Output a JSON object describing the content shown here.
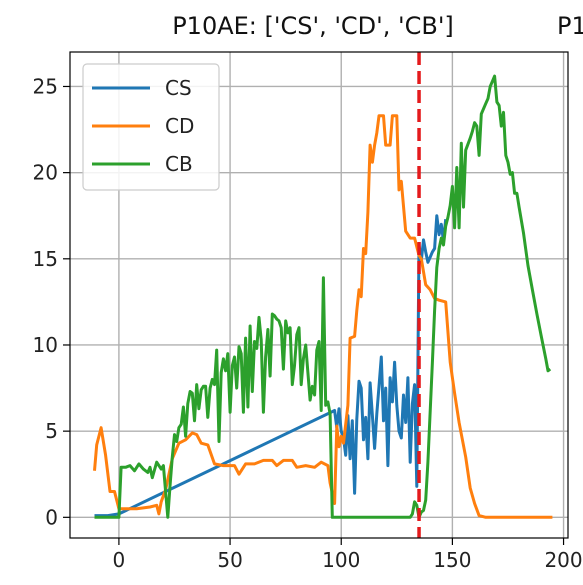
{
  "chart_data": {
    "type": "line",
    "title": "P10AE: ['CS', 'CD', 'CB']",
    "title_overflow": "P1",
    "xlabel": "",
    "ylabel": "",
    "xlim": [
      -22,
      202
    ],
    "ylim": [
      -1.2,
      27
    ],
    "x_ticks": [
      0,
      50,
      100,
      150,
      200
    ],
    "y_ticks": [
      0,
      5,
      10,
      15,
      20,
      25
    ],
    "grid": true,
    "legend_position": "top-left",
    "vline": {
      "x": 135,
      "color": "#e41a1c",
      "style": "dashed"
    },
    "series": [
      {
        "name": "CS",
        "color": "#1f77b4",
        "points": [
          [
            -11,
            0.1
          ],
          [
            -5,
            0.1
          ],
          [
            0,
            0.2
          ],
          [
            97,
            6.2
          ],
          [
            98,
            5.2
          ],
          [
            99,
            6.3
          ],
          [
            100,
            5.0
          ],
          [
            101,
            4.6
          ],
          [
            102,
            3.6
          ],
          [
            103,
            5.9
          ],
          [
            104,
            3.4
          ],
          [
            105,
            5.6
          ],
          [
            106,
            1.4
          ],
          [
            107,
            5.7
          ],
          [
            108,
            7.9
          ],
          [
            109,
            7.5
          ],
          [
            110,
            4.5
          ],
          [
            111,
            5.8
          ],
          [
            112,
            3.4
          ],
          [
            113,
            7.8
          ],
          [
            114,
            5.9
          ],
          [
            115,
            4.0
          ],
          [
            116,
            6.0
          ],
          [
            117,
            7.6
          ],
          [
            118,
            9.3
          ],
          [
            119,
            5.6
          ],
          [
            120,
            7.5
          ],
          [
            121,
            3.0
          ],
          [
            122,
            8.1
          ],
          [
            123,
            6.7
          ],
          [
            124,
            9.0
          ],
          [
            125,
            6.5
          ],
          [
            126,
            5.0
          ],
          [
            127,
            4.6
          ],
          [
            128,
            7.1
          ],
          [
            129,
            5.5
          ],
          [
            130,
            8.1
          ],
          [
            131,
            3.2
          ],
          [
            132,
            6.6
          ],
          [
            133,
            7.7
          ],
          [
            134,
            1.8
          ],
          [
            135,
            15.8
          ],
          [
            136,
            14.9
          ],
          [
            137,
            16.1
          ],
          [
            138,
            15.4
          ],
          [
            139,
            14.8
          ],
          [
            140,
            15.1
          ],
          [
            141,
            15.4
          ],
          [
            142,
            15.6
          ],
          [
            143,
            17.5
          ],
          [
            144,
            16.4
          ],
          [
            145,
            17.0
          ],
          [
            146,
            16.0
          ],
          [
            147,
            17.3
          ]
        ]
      },
      {
        "name": "CD",
        "color": "#ff7f0e",
        "points": [
          [
            -11,
            2.7
          ],
          [
            -10,
            4.2
          ],
          [
            -8,
            5.2
          ],
          [
            -6,
            3.6
          ],
          [
            -4,
            1.5
          ],
          [
            -2,
            1.5
          ],
          [
            0,
            0.5
          ],
          [
            8,
            0.5
          ],
          [
            14,
            0.6
          ],
          [
            17,
            0.7
          ],
          [
            18,
            0.2
          ],
          [
            19,
            0.9
          ],
          [
            21,
            1.6
          ],
          [
            24,
            3.4
          ],
          [
            27,
            4.3
          ],
          [
            30,
            4.5
          ],
          [
            33,
            4.9
          ],
          [
            35,
            4.8
          ],
          [
            37,
            4.3
          ],
          [
            40,
            4.2
          ],
          [
            43,
            3.1
          ],
          [
            47,
            3.0
          ],
          [
            52,
            3.0
          ],
          [
            54,
            2.5
          ],
          [
            57,
            3.1
          ],
          [
            61,
            3.1
          ],
          [
            65,
            3.3
          ],
          [
            69,
            3.3
          ],
          [
            71,
            3.0
          ],
          [
            74,
            3.3
          ],
          [
            78,
            3.3
          ],
          [
            80,
            2.9
          ],
          [
            84,
            3.0
          ],
          [
            88,
            2.9
          ],
          [
            91,
            3.2
          ],
          [
            94,
            3.0
          ],
          [
            95,
            2.0
          ],
          [
            97,
            0.8
          ],
          [
            98,
            5.3
          ],
          [
            99,
            4.1
          ],
          [
            100,
            4.7
          ],
          [
            101,
            4.3
          ],
          [
            103,
            6.5
          ],
          [
            104,
            10.4
          ],
          [
            106,
            10.5
          ],
          [
            107,
            12.0
          ],
          [
            108,
            13.2
          ],
          [
            109,
            12.8
          ],
          [
            110,
            15.6
          ],
          [
            111,
            15.3
          ],
          [
            112,
            17.7
          ],
          [
            113,
            21.6
          ],
          [
            114,
            20.6
          ],
          [
            115,
            21.6
          ],
          [
            116,
            22.3
          ],
          [
            117,
            23.3
          ],
          [
            119,
            23.3
          ],
          [
            120,
            21.6
          ],
          [
            122,
            21.6
          ],
          [
            123,
            23.3
          ],
          [
            125,
            23.3
          ],
          [
            126,
            19.0
          ],
          [
            127,
            19.5
          ],
          [
            129,
            16.6
          ],
          [
            131,
            16.2
          ],
          [
            133,
            16.2
          ],
          [
            135,
            15.2
          ],
          [
            136,
            15.0
          ],
          [
            138,
            13.5
          ],
          [
            140,
            13.2
          ],
          [
            142,
            12.7
          ],
          [
            144,
            12.6
          ],
          [
            147,
            12.5
          ],
          [
            149,
            9.0
          ],
          [
            151,
            7.2
          ],
          [
            153,
            5.5
          ],
          [
            156,
            3.5
          ],
          [
            158,
            1.7
          ],
          [
            160,
            0.8
          ],
          [
            162,
            0.1
          ],
          [
            165,
            0
          ],
          [
            195,
            0
          ]
        ]
      },
      {
        "name": "CB",
        "color": "#2ca02c",
        "points": [
          [
            -11,
            0
          ],
          [
            -8,
            0
          ],
          [
            -5,
            0
          ],
          [
            0,
            0
          ],
          [
            1,
            2.9
          ],
          [
            3,
            2.9
          ],
          [
            5,
            3.0
          ],
          [
            7,
            2.7
          ],
          [
            9,
            3.1
          ],
          [
            11,
            2.8
          ],
          [
            13,
            2.6
          ],
          [
            14,
            2.9
          ],
          [
            15,
            2.3
          ],
          [
            17,
            3.2
          ],
          [
            19,
            2.8
          ],
          [
            20,
            3.0
          ],
          [
            21,
            1.5
          ],
          [
            22,
            0
          ],
          [
            23,
            1.8
          ],
          [
            24,
            3.5
          ],
          [
            25,
            4.8
          ],
          [
            26,
            4.4
          ],
          [
            27,
            5.2
          ],
          [
            28,
            5.4
          ],
          [
            29,
            6.4
          ],
          [
            30,
            4.7
          ],
          [
            31,
            6.6
          ],
          [
            32,
            7.3
          ],
          [
            33,
            7.2
          ],
          [
            34,
            5.6
          ],
          [
            35,
            7.7
          ],
          [
            36,
            6.3
          ],
          [
            37,
            7.4
          ],
          [
            38,
            7.6
          ],
          [
            39,
            7.6
          ],
          [
            40,
            5.8
          ],
          [
            41,
            7.5
          ],
          [
            42,
            8.0
          ],
          [
            43,
            7.7
          ],
          [
            44,
            9.7
          ],
          [
            45,
            4.4
          ],
          [
            46,
            8.4
          ],
          [
            47,
            9.2
          ],
          [
            48,
            8.5
          ],
          [
            49,
            9.5
          ],
          [
            50,
            6.1
          ],
          [
            51,
            8.8
          ],
          [
            52,
            9.3
          ],
          [
            53,
            7.5
          ],
          [
            54,
            9.9
          ],
          [
            55,
            9.5
          ],
          [
            56,
            6.1
          ],
          [
            57,
            10.4
          ],
          [
            58,
            6.4
          ],
          [
            59,
            11.1
          ],
          [
            60,
            7.3
          ],
          [
            61,
            10.2
          ],
          [
            62,
            9.8
          ],
          [
            63,
            11.6
          ],
          [
            64,
            10.3
          ],
          [
            65,
            6.1
          ],
          [
            66,
            9.3
          ],
          [
            67,
            10.9
          ],
          [
            68,
            8.2
          ],
          [
            69,
            11.8
          ],
          [
            70,
            11.7
          ],
          [
            71,
            11.5
          ],
          [
            72,
            11.4
          ],
          [
            73,
            11.0
          ],
          [
            74,
            8.6
          ],
          [
            75,
            11.4
          ],
          [
            76,
            10.7
          ],
          [
            77,
            11.0
          ],
          [
            78,
            7.7
          ],
          [
            79,
            8.8
          ],
          [
            80,
            10.6
          ],
          [
            81,
            11.0
          ],
          [
            82,
            7.7
          ],
          [
            83,
            9.2
          ],
          [
            84,
            10.0
          ],
          [
            85,
            8.4
          ],
          [
            86,
            6.8
          ],
          [
            87,
            7.6
          ],
          [
            88,
            7.1
          ],
          [
            89,
            9.7
          ],
          [
            90,
            10.2
          ],
          [
            91,
            6.2
          ],
          [
            92,
            13.9
          ],
          [
            93,
            6.5
          ],
          [
            94,
            6.7
          ],
          [
            95,
            6.0
          ],
          [
            96,
            0
          ],
          [
            100,
            0
          ],
          [
            120,
            0
          ],
          [
            131,
            0
          ],
          [
            132,
            0.2
          ],
          [
            133,
            0.9
          ],
          [
            134,
            0.7
          ],
          [
            135,
            0
          ],
          [
            136,
            0.3
          ],
          [
            137,
            0.4
          ],
          [
            138,
            1.0
          ],
          [
            139,
            3.2
          ],
          [
            141,
            9.0
          ],
          [
            142,
            12.0
          ],
          [
            143,
            14.5
          ],
          [
            144,
            15.6
          ],
          [
            145,
            16.2
          ],
          [
            146,
            15.8
          ],
          [
            147,
            16.9
          ],
          [
            148,
            17.4
          ],
          [
            149,
            18.1
          ],
          [
            150,
            19.2
          ],
          [
            151,
            16.8
          ],
          [
            152,
            20.3
          ],
          [
            153,
            16.8
          ],
          [
            154,
            21.7
          ],
          [
            155,
            18.0
          ],
          [
            156,
            21.3
          ],
          [
            158,
            22.0
          ],
          [
            159,
            22.4
          ],
          [
            160,
            22.9
          ],
          [
            161,
            22.7
          ],
          [
            162,
            21.0
          ],
          [
            163,
            23.4
          ],
          [
            165,
            24.0
          ],
          [
            166,
            24.3
          ],
          [
            167,
            25.0
          ],
          [
            168,
            25.3
          ],
          [
            169,
            25.6
          ],
          [
            170,
            24.1
          ],
          [
            171,
            23.9
          ],
          [
            172,
            22.7
          ],
          [
            173,
            23.5
          ],
          [
            174,
            21.0
          ],
          [
            175,
            20.6
          ],
          [
            176,
            19.9
          ],
          [
            177,
            20.0
          ],
          [
            178,
            18.8
          ],
          [
            179,
            18.8
          ],
          [
            180,
            18.0
          ],
          [
            182,
            16.5
          ],
          [
            184,
            14.6
          ],
          [
            186,
            13.2
          ],
          [
            188,
            11.8
          ],
          [
            190,
            10.5
          ],
          [
            192,
            9.2
          ],
          [
            193,
            8.5
          ],
          [
            194,
            8.6
          ]
        ]
      }
    ]
  }
}
